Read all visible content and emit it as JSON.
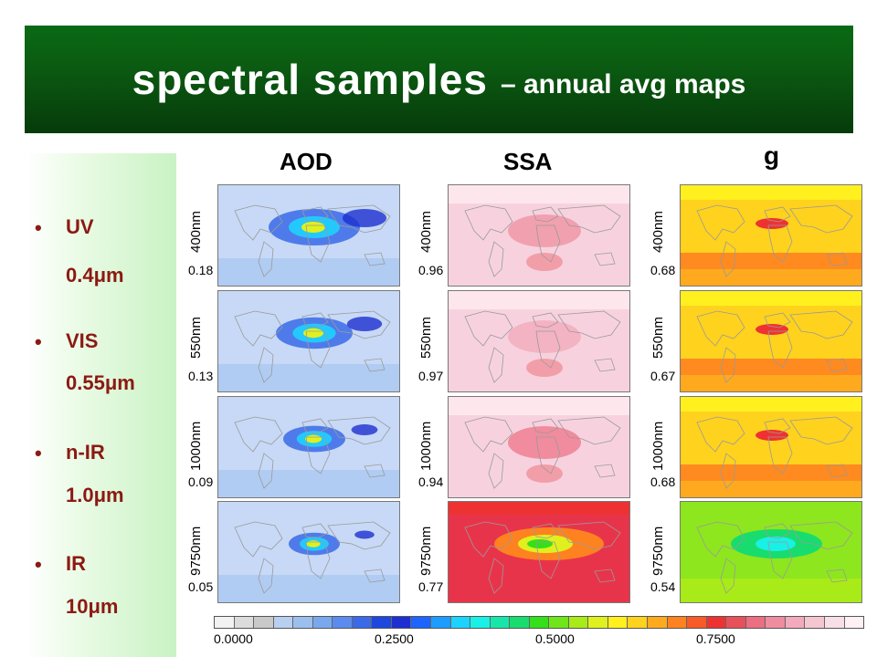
{
  "title": {
    "main": "spectral samples",
    "sub": "– annual avg maps"
  },
  "bands": [
    {
      "bullet": "•",
      "name": "UV",
      "wavelength": "0.4μm"
    },
    {
      "bullet": "•",
      "name": "VIS",
      "wavelength": "0.55μm"
    },
    {
      "bullet": "•",
      "name": "n-IR",
      "wavelength": "1.0μm"
    },
    {
      "bullet": "•",
      "name": "IR",
      "wavelength": "10μm"
    }
  ],
  "columns": [
    "AOD",
    "SSA",
    "g"
  ],
  "rows": [
    {
      "label": "400nm",
      "values": [
        "0.18",
        "0.96",
        "0.68"
      ]
    },
    {
      "label": "550nm",
      "values": [
        "0.13",
        "0.97",
        "0.67"
      ]
    },
    {
      "label": "1000nm",
      "values": [
        "0.09",
        "0.94",
        "0.68"
      ]
    },
    {
      "label": "9750nm",
      "values": [
        "0.05",
        "0.77",
        "0.54"
      ]
    }
  ],
  "colorbar": {
    "ticks": [
      "0.0000",
      "0.2500",
      "0.5000",
      "0.7500"
    ],
    "colors": [
      "#f2f2f2",
      "#dcdcdc",
      "#c9c9c9",
      "#b9cff0",
      "#9cc0ee",
      "#7aa8ef",
      "#5b8bef",
      "#3a6ae8",
      "#1e47e0",
      "#1d2fd0",
      "#1e64ff",
      "#1e9cff",
      "#1ed2ff",
      "#19f0e6",
      "#17e6aa",
      "#19dc6e",
      "#33e01a",
      "#6ee619",
      "#a8eb19",
      "#e0f01e",
      "#fff01e",
      "#ffd21e",
      "#ffaa1e",
      "#ff8220",
      "#f85a28",
      "#ee3232",
      "#e8505a",
      "#ec6e82",
      "#f08ca0",
      "#f2aabc",
      "#f5c6d2",
      "#f8dee6",
      "#fff0f4"
    ]
  },
  "colors": {
    "banner": "#0b5a12",
    "sidebar_text": "#8b1a12",
    "aod_base": "#c7d9f6",
    "ssa_base": "#f7d2de",
    "g_base": "#ffd21e",
    "ssa_ir_base": "#e8344a",
    "g_ir_base": "#8ee61e"
  }
}
